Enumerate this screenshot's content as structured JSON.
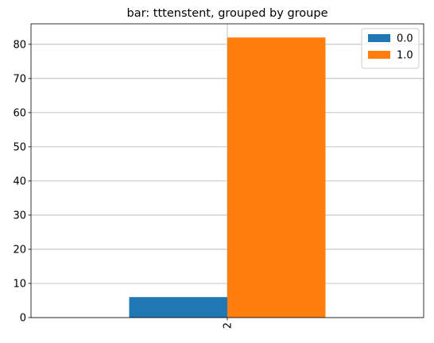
{
  "chart_data": {
    "type": "bar",
    "title": "bar: tttenstent, grouped by groupe",
    "xlabel": "",
    "ylabel": "",
    "categories": [
      "2"
    ],
    "series": [
      {
        "name": "0.0",
        "values": [
          6
        ],
        "color": "#1f77b4"
      },
      {
        "name": "1.0",
        "values": [
          82
        ],
        "color": "#ff7f0e"
      }
    ],
    "ylim": [
      0,
      86
    ],
    "yticks": [
      0,
      10,
      20,
      30,
      40,
      50,
      60,
      70,
      80
    ],
    "grid": true,
    "legend_position": "top-right",
    "xtick_rotation": "vertical"
  }
}
